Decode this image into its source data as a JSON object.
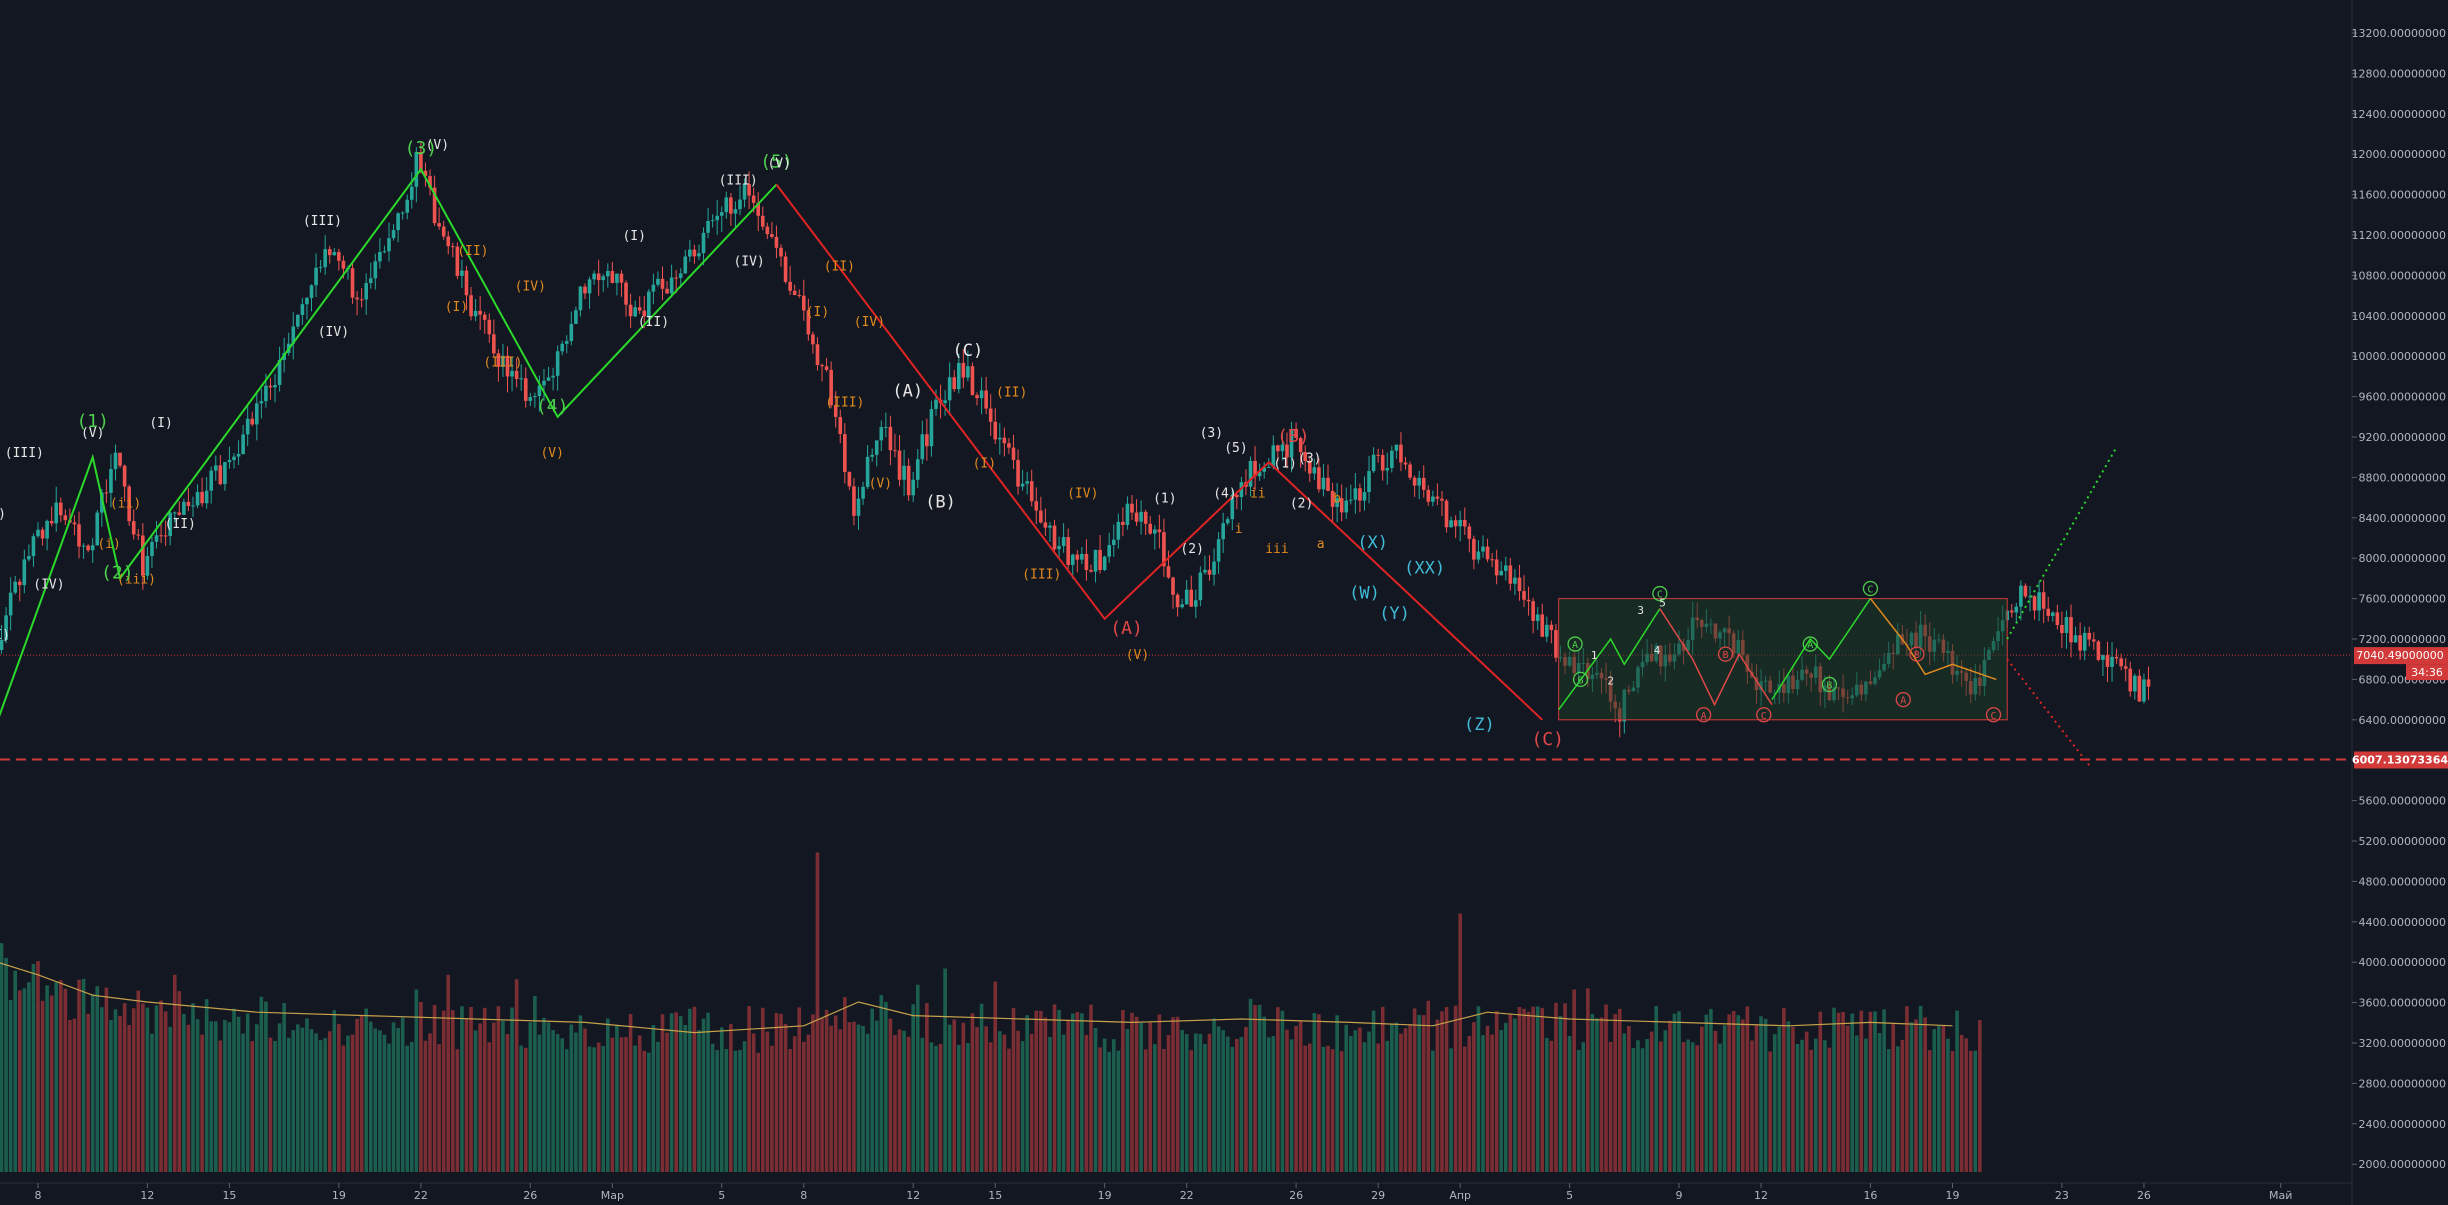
{
  "colors": {
    "background": "#131722",
    "grid": "#1e2230",
    "up": "#26a69a",
    "down": "#ef5350",
    "volume_up": "#1b5e4e",
    "volume_down": "#7a2e33",
    "volume_ma": "#c8a24a",
    "wave_green": "#2bd92b",
    "wave_red": "#e02424",
    "label_white": "#e6e6e6",
    "label_orange": "#e08a1e",
    "label_cyan": "#3fbcd8",
    "label_red": "#e04848",
    "label_green": "#4ccf4c",
    "box_border": "#d23a3a",
    "box_fill": "#1d3b26",
    "price_line": "#d23a3a"
  },
  "chart_data": {
    "type": "candlestick",
    "y_range": [
      1400,
      13800
    ],
    "y_ticks": [
      "13200.00000000",
      "12800.00000000",
      "12400.00000000",
      "12000.00000000",
      "11600.00000000",
      "11200.00000000",
      "10800.00000000",
      "10400.00000000",
      "10000.00000000",
      "9600.00000000",
      "9200.00000000",
      "8800.00000000",
      "8400.00000000",
      "8000.00000000",
      "7600.00000000",
      "7200.00000000",
      "6800.00000000",
      "6400.00000000",
      "6000.00000000",
      "5600.00000000",
      "5200.00000000",
      "4800.00000000",
      "4400.00000000",
      "4000.00000000",
      "3600.00000000",
      "3200.00000000",
      "2800.00000000",
      "2400.00000000",
      "2000.00000000"
    ],
    "x_range_days": [
      -2,
      88
    ],
    "x_ticks": [
      {
        "label": "8",
        "day": 0
      },
      {
        "label": "12",
        "day": 4
      },
      {
        "label": "15",
        "day": 7
      },
      {
        "label": "19",
        "day": 11
      },
      {
        "label": "22",
        "day": 14
      },
      {
        "label": "26",
        "day": 18
      },
      {
        "label": "Мар",
        "day": 21
      },
      {
        "label": "5",
        "day": 25
      },
      {
        "label": "8",
        "day": 28
      },
      {
        "label": "12",
        "day": 32
      },
      {
        "label": "15",
        "day": 35
      },
      {
        "label": "19",
        "day": 39
      },
      {
        "label": "22",
        "day": 42
      },
      {
        "label": "26",
        "day": 46
      },
      {
        "label": "29",
        "day": 49
      },
      {
        "label": "Апр",
        "day": 52
      },
      {
        "label": "5",
        "day": 56
      },
      {
        "label": "9",
        "day": 60
      },
      {
        "label": "12",
        "day": 63
      },
      {
        "label": "16",
        "day": 67
      },
      {
        "label": "19",
        "day": 70
      },
      {
        "label": "23",
        "day": 74
      },
      {
        "label": "26",
        "day": 77
      },
      {
        "label": "Май",
        "day": 82
      }
    ],
    "price_path": [
      [
        -2,
        6600
      ],
      [
        0,
        8200
      ],
      [
        1,
        8500
      ],
      [
        2,
        8100
      ],
      [
        3,
        9000
      ],
      [
        4,
        7950
      ],
      [
        5,
        8350
      ],
      [
        6,
        8600
      ],
      [
        7,
        8900
      ],
      [
        9,
        9900
      ],
      [
        10,
        10600
      ],
      [
        11,
        11100
      ],
      [
        12,
        10500
      ],
      [
        14,
        11900
      ],
      [
        15,
        11200
      ],
      [
        16,
        10500
      ],
      [
        17,
        10000
      ],
      [
        18,
        9600
      ],
      [
        19,
        9800
      ],
      [
        20,
        10700
      ],
      [
        21,
        10900
      ],
      [
        22,
        10400
      ],
      [
        24,
        11000
      ],
      [
        26,
        11700
      ],
      [
        27,
        11200
      ],
      [
        28,
        10500
      ],
      [
        29,
        9800
      ],
      [
        30,
        8500
      ],
      [
        31,
        9300
      ],
      [
        32,
        8700
      ],
      [
        33,
        9500
      ],
      [
        34,
        9900
      ],
      [
        35,
        9400
      ],
      [
        36,
        8800
      ],
      [
        37,
        8300
      ],
      [
        38,
        8000
      ],
      [
        39,
        7950
      ],
      [
        40,
        8500
      ],
      [
        41,
        8300
      ],
      [
        42,
        7500
      ],
      [
        43,
        7900
      ],
      [
        44,
        8700
      ],
      [
        45,
        9000
      ],
      [
        46,
        9150
      ],
      [
        47,
        8700
      ],
      [
        48,
        8500
      ],
      [
        49,
        8900
      ],
      [
        50,
        9050
      ],
      [
        51,
        8600
      ],
      [
        52,
        8300
      ],
      [
        53,
        8000
      ],
      [
        54,
        7800
      ],
      [
        55,
        7400
      ],
      [
        56,
        7000
      ],
      [
        57,
        6850
      ],
      [
        58,
        6500
      ],
      [
        59,
        7000
      ],
      [
        60,
        7100
      ],
      [
        61,
        7400
      ],
      [
        62,
        7250
      ],
      [
        63,
        6800
      ],
      [
        64,
        6750
      ],
      [
        65,
        6900
      ],
      [
        66,
        6600
      ],
      [
        67,
        6750
      ],
      [
        68,
        7100
      ],
      [
        69,
        7250
      ],
      [
        70,
        7000
      ],
      [
        71,
        6700
      ],
      [
        72,
        7500
      ],
      [
        73,
        7650
      ],
      [
        74,
        7400
      ],
      [
        75,
        7150
      ],
      [
        76,
        6950
      ],
      [
        77,
        6700
      ]
    ],
    "current_price": "7040.49000000",
    "countdown": "34:36",
    "support_price": "6007.13073364",
    "support_value": 6007.13,
    "current_value": 7040.49,
    "volume_range": [
      0,
      4800
    ],
    "volume_ma_path": [
      [
        -2,
        3150
      ],
      [
        0,
        2900
      ],
      [
        2,
        2600
      ],
      [
        4,
        2500
      ],
      [
        8,
        2350
      ],
      [
        12,
        2300
      ],
      [
        16,
        2250
      ],
      [
        20,
        2200
      ],
      [
        24,
        2050
      ],
      [
        28,
        2150
      ],
      [
        30,
        2500
      ],
      [
        32,
        2300
      ],
      [
        36,
        2250
      ],
      [
        40,
        2200
      ],
      [
        44,
        2250
      ],
      [
        48,
        2200
      ],
      [
        51,
        2150
      ],
      [
        53,
        2350
      ],
      [
        56,
        2250
      ],
      [
        60,
        2200
      ],
      [
        64,
        2150
      ],
      [
        67,
        2200
      ],
      [
        70,
        2150
      ]
    ],
    "volume_spikes": [
      [
        -2,
        3850
      ],
      [
        0,
        3100
      ],
      [
        28.5,
        4700
      ],
      [
        52,
        3800
      ],
      [
        5,
        2900
      ],
      [
        15,
        2900
      ],
      [
        35,
        2800
      ]
    ],
    "wave_lines": [
      {
        "color": "wave_green",
        "points": [
          [
            -2,
            6000
          ],
          [
            2,
            9000
          ],
          [
            3,
            7800
          ],
          [
            14,
            11850
          ],
          [
            19,
            9400
          ],
          [
            27,
            11700
          ]
        ]
      },
      {
        "color": "wave_red",
        "points": [
          [
            27,
            11700
          ],
          [
            39,
            7400
          ],
          [
            45,
            8950
          ],
          [
            55,
            6400
          ]
        ]
      }
    ],
    "projections": [
      {
        "color": "wave_green",
        "points": [
          [
            72,
            7200
          ],
          [
            76,
            9100
          ]
        ]
      },
      {
        "color": "wave_red",
        "points": [
          [
            72,
            7000
          ],
          [
            75,
            5950
          ]
        ]
      }
    ],
    "box": {
      "x0": 55.6,
      "x1": 72,
      "y0": 7600,
      "y1": 6400
    },
    "box_wave_lines": [
      {
        "color": "wave_green",
        "points": [
          [
            55.6,
            6500
          ],
          [
            57.5,
            7200
          ],
          [
            58,
            6950
          ],
          [
            59.3,
            7500
          ]
        ]
      },
      {
        "color": "label_red",
        "points": [
          [
            59.3,
            7500
          ],
          [
            60.5,
            7000
          ],
          [
            61.3,
            6550
          ],
          [
            62.2,
            7050
          ],
          [
            63.4,
            6550
          ]
        ]
      },
      {
        "color": "wave_green",
        "points": [
          [
            63.4,
            6600
          ],
          [
            64.8,
            7200
          ],
          [
            65.5,
            7000
          ],
          [
            67,
            7600
          ]
        ]
      },
      {
        "color": "label_orange",
        "points": [
          [
            67,
            7600
          ],
          [
            68.3,
            7150
          ],
          [
            69,
            6850
          ],
          [
            70,
            6950
          ],
          [
            71.6,
            6800
          ]
        ]
      }
    ],
    "wave_labels": [
      {
        "text": "(I)",
        "day": -1.6,
        "price": 8400,
        "color": "label_white"
      },
      {
        "text": "(II)",
        "day": -1.6,
        "price": 7200,
        "color": "label_white"
      },
      {
        "text": "(III)",
        "day": -0.5,
        "price": 9000,
        "color": "label_white"
      },
      {
        "text": "(IV)",
        "day": 0.4,
        "price": 7700,
        "color": "label_white"
      },
      {
        "text": "(V)",
        "day": 2,
        "price": 9200,
        "color": "label_white"
      },
      {
        "text": "(1)",
        "day": 2,
        "price": 9300,
        "color": "label_green",
        "size": 18
      },
      {
        "text": "(ii)",
        "day": 3.2,
        "price": 8500,
        "color": "label_orange"
      },
      {
        "text": "(i)",
        "day": 2.6,
        "price": 8100,
        "color": "label_orange"
      },
      {
        "text": "(iii)",
        "day": 3.6,
        "price": 7750,
        "color": "label_orange"
      },
      {
        "text": "(2)",
        "day": 2.9,
        "price": 7800,
        "color": "label_green",
        "size": 18
      },
      {
        "text": "(I)",
        "day": 4.5,
        "price": 9300,
        "color": "label_white"
      },
      {
        "text": "(II)",
        "day": 5.2,
        "price": 8300,
        "color": "label_white"
      },
      {
        "text": "(III)",
        "day": 10.4,
        "price": 11300,
        "color": "label_white"
      },
      {
        "text": "(IV)",
        "day": 10.8,
        "price": 10200,
        "color": "label_white"
      },
      {
        "text": "(3)",
        "day": 14,
        "price": 12000,
        "color": "label_green",
        "size": 18
      },
      {
        "text": "(V)",
        "day": 14.6,
        "price": 12050,
        "color": "label_white"
      },
      {
        "text": "(II)",
        "day": 15.9,
        "price": 11000,
        "color": "label_orange"
      },
      {
        "text": "(I)",
        "day": 15.3,
        "price": 10450,
        "color": "label_orange"
      },
      {
        "text": "(IV)",
        "day": 18,
        "price": 10650,
        "color": "label_orange"
      },
      {
        "text": "(III)",
        "day": 17,
        "price": 9900,
        "color": "label_orange"
      },
      {
        "text": "(4)",
        "day": 18.8,
        "price": 9450,
        "color": "label_green",
        "size": 18
      },
      {
        "text": "(V)",
        "day": 18.8,
        "price": 9000,
        "color": "label_orange"
      },
      {
        "text": "(I)",
        "day": 21.8,
        "price": 11150,
        "color": "label_white"
      },
      {
        "text": "(II)",
        "day": 22.5,
        "price": 10300,
        "color": "label_white"
      },
      {
        "text": "(III)",
        "day": 25.6,
        "price": 11700,
        "color": "label_white"
      },
      {
        "text": "(IV)",
        "day": 26,
        "price": 10900,
        "color": "label_white"
      },
      {
        "text": "(5)",
        "day": 27,
        "price": 11870,
        "color": "label_green",
        "size": 18
      },
      {
        "text": "(V)",
        "day": 27.1,
        "price": 11870,
        "color": "label_white"
      },
      {
        "text": "(II)",
        "day": 29.3,
        "price": 10850,
        "color": "label_orange"
      },
      {
        "text": "(I)",
        "day": 28.5,
        "price": 10400,
        "color": "label_orange"
      },
      {
        "text": "(IV)",
        "day": 30.4,
        "price": 10300,
        "color": "label_orange"
      },
      {
        "text": "(III)",
        "day": 29.5,
        "price": 9500,
        "color": "label_orange"
      },
      {
        "text": "(V)",
        "day": 30.8,
        "price": 8700,
        "color": "label_orange"
      },
      {
        "text": "(A)",
        "day": 31.8,
        "price": 9600,
        "color": "label_white",
        "size": 17
      },
      {
        "text": "(B)",
        "day": 33,
        "price": 8500,
        "color": "label_white",
        "size": 17
      },
      {
        "text": "(C)",
        "day": 34,
        "price": 10000,
        "color": "label_white",
        "size": 17
      },
      {
        "text": "(II)",
        "day": 35.6,
        "price": 9600,
        "color": "label_orange"
      },
      {
        "text": "(I)",
        "day": 34.6,
        "price": 8900,
        "color": "label_orange"
      },
      {
        "text": "(IV)",
        "day": 38.2,
        "price": 8600,
        "color": "label_orange"
      },
      {
        "text": "(III)",
        "day": 36.7,
        "price": 7800,
        "color": "label_orange"
      },
      {
        "text": "(A)",
        "day": 39.8,
        "price": 7250,
        "color": "label_red",
        "size": 18
      },
      {
        "text": "(V)",
        "day": 40.2,
        "price": 7000,
        "color": "label_orange"
      },
      {
        "text": "(1)",
        "day": 41.2,
        "price": 8550,
        "color": "label_white"
      },
      {
        "text": "(2)",
        "day": 42.2,
        "price": 8050,
        "color": "label_white"
      },
      {
        "text": "(3)",
        "day": 42.9,
        "price": 9200,
        "color": "label_white"
      },
      {
        "text": "(4)",
        "day": 43.4,
        "price": 8600,
        "color": "label_white"
      },
      {
        "text": "(5)",
        "day": 43.8,
        "price": 9050,
        "color": "label_white"
      },
      {
        "text": "i",
        "day": 43.9,
        "price": 8250,
        "color": "label_orange"
      },
      {
        "text": "ii",
        "day": 44.6,
        "price": 8600,
        "color": "label_orange"
      },
      {
        "text": "iii",
        "day": 45.3,
        "price": 8050,
        "color": "label_orange"
      },
      {
        "text": "(B)",
        "day": 45.9,
        "price": 9150,
        "color": "label_red",
        "size": 18
      },
      {
        "text": "(1)",
        "day": 45.6,
        "price": 8900,
        "color": "label_white"
      },
      {
        "text": "(3)",
        "day": 46.5,
        "price": 8950,
        "color": "label_white"
      },
      {
        "text": "(2)",
        "day": 46.2,
        "price": 8500,
        "color": "label_white"
      },
      {
        "text": "b",
        "day": 47.5,
        "price": 8550,
        "color": "label_orange"
      },
      {
        "text": "a",
        "day": 46.9,
        "price": 8100,
        "color": "label_orange"
      },
      {
        "text": "(X)",
        "day": 48.8,
        "price": 8100,
        "color": "label_cyan",
        "size": 17
      },
      {
        "text": "(W)",
        "day": 48.5,
        "price": 7600,
        "color": "label_cyan",
        "size": 17
      },
      {
        "text": "(XX)",
        "day": 50.7,
        "price": 7850,
        "color": "label_cyan",
        "size": 17
      },
      {
        "text": "(Y)",
        "day": 49.6,
        "price": 7400,
        "color": "label_cyan",
        "size": 17
      },
      {
        "text": "(Z)",
        "day": 52.7,
        "price": 6300,
        "color": "label_cyan",
        "size": 17
      },
      {
        "text": "(C)",
        "day": 55.2,
        "price": 6150,
        "color": "label_red",
        "size": 18
      }
    ],
    "circle_labels": [
      {
        "text": "A",
        "day": 56.2,
        "price": 7150,
        "color": "label_green"
      },
      {
        "text": "B",
        "day": 56.4,
        "price": 6800,
        "color": "label_green"
      },
      {
        "text": "C",
        "day": 59.3,
        "price": 7650,
        "color": "label_green"
      },
      {
        "text": "B",
        "day": 61.7,
        "price": 7050,
        "color": "label_red"
      },
      {
        "text": "A",
        "day": 60.9,
        "price": 6450,
        "color": "label_red"
      },
      {
        "text": "C",
        "day": 63.1,
        "price": 6450,
        "color": "label_red"
      },
      {
        "text": "A",
        "day": 64.8,
        "price": 7150,
        "color": "label_green"
      },
      {
        "text": "B",
        "day": 65.5,
        "price": 6750,
        "color": "label_green"
      },
      {
        "text": "C",
        "day": 67,
        "price": 7700,
        "color": "label_green"
      },
      {
        "text": "B",
        "day": 68.7,
        "price": 7050,
        "color": "label_red"
      },
      {
        "text": "A",
        "day": 68.2,
        "price": 6600,
        "color": "label_red"
      },
      {
        "text": "C",
        "day": 71.5,
        "price": 6450,
        "color": "label_red"
      }
    ],
    "small_labels": [
      {
        "text": "1",
        "day": 56.9,
        "price": 7000,
        "color": "label_white"
      },
      {
        "text": "2",
        "day": 57.5,
        "price": 6750,
        "color": "label_white"
      },
      {
        "text": "3",
        "day": 58.6,
        "price": 7450,
        "color": "label_white"
      },
      {
        "text": "4",
        "day": 59.2,
        "price": 7050,
        "color": "label_white"
      },
      {
        "text": "5",
        "day": 59.4,
        "price": 7520,
        "color": "label_white"
      }
    ]
  }
}
